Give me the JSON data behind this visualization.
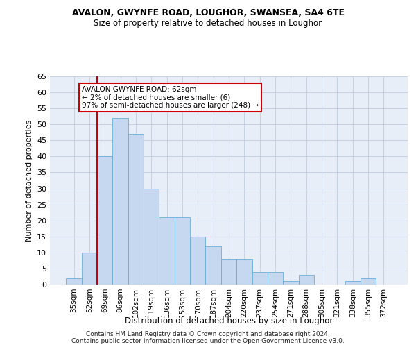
{
  "title1": "AVALON, GWYNFE ROAD, LOUGHOR, SWANSEA, SA4 6TE",
  "title2": "Size of property relative to detached houses in Loughor",
  "xlabel": "Distribution of detached houses by size in Loughor",
  "ylabel": "Number of detached properties",
  "categories": [
    "35sqm",
    "52sqm",
    "69sqm",
    "86sqm",
    "102sqm",
    "119sqm",
    "136sqm",
    "153sqm",
    "170sqm",
    "187sqm",
    "204sqm",
    "220sqm",
    "237sqm",
    "254sqm",
    "271sqm",
    "288sqm",
    "305sqm",
    "321sqm",
    "338sqm",
    "355sqm",
    "372sqm"
  ],
  "values": [
    2,
    10,
    40,
    52,
    47,
    30,
    21,
    21,
    15,
    12,
    8,
    8,
    4,
    4,
    1,
    3,
    0,
    0,
    1,
    2,
    0
  ],
  "bar_color": "#c5d8ef",
  "bar_edge_color": "#6baed6",
  "vline_x": 1.5,
  "vline_color": "#cc0000",
  "annotation_text": "AVALON GWYNFE ROAD: 62sqm\n← 2% of detached houses are smaller (6)\n97% of semi-detached houses are larger (248) →",
  "annotation_box_color": "#ffffff",
  "annotation_box_edge": "#cc0000",
  "ylim": [
    0,
    65
  ],
  "yticks": [
    0,
    5,
    10,
    15,
    20,
    25,
    30,
    35,
    40,
    45,
    50,
    55,
    60,
    65
  ],
  "footer1": "Contains HM Land Registry data © Crown copyright and database right 2024.",
  "footer2": "Contains public sector information licensed under the Open Government Licence v3.0.",
  "bg_color": "#ffffff",
  "plot_bg_color": "#e8eef8",
  "grid_color": "#c0ccdd"
}
